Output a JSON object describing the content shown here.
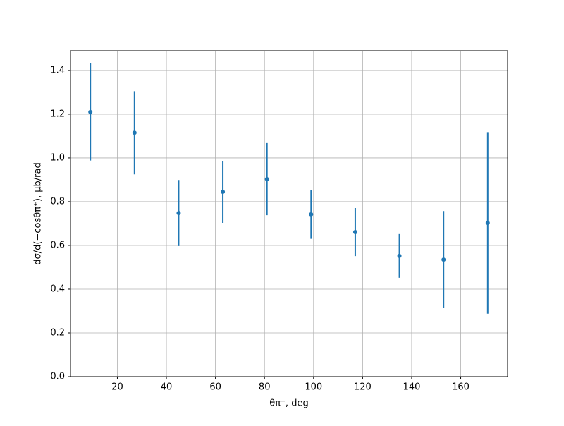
{
  "chart_data": {
    "type": "errorbar",
    "xlabel": "θπ⁺, deg",
    "ylabel": "dσ/d(−cosθπ⁺), μb/rad",
    "x": [
      9,
      27,
      45,
      63,
      81,
      99,
      117,
      135,
      153,
      171
    ],
    "series": [
      {
        "color": "#1f77b4",
        "values": [
          1.21,
          1.115,
          0.748,
          0.845,
          0.903,
          0.742,
          0.661,
          0.552,
          0.535,
          0.703
        ],
        "errors": [
          0.222,
          0.19,
          0.151,
          0.142,
          0.165,
          0.112,
          0.11,
          0.1,
          0.222,
          0.415
        ]
      }
    ],
    "xlim": [
      0.9,
      179.1
    ],
    "xticks": [
      20,
      40,
      60,
      80,
      100,
      120,
      140,
      160
    ],
    "ylim": [
      0,
      1.49
    ],
    "yticks": [
      {
        "value": 0,
        "label": "0.0"
      },
      0.2,
      0.4,
      0.6,
      0.8,
      {
        "value": 1,
        "label": "1.0"
      },
      1.2,
      1.4
    ],
    "grid": true
  }
}
